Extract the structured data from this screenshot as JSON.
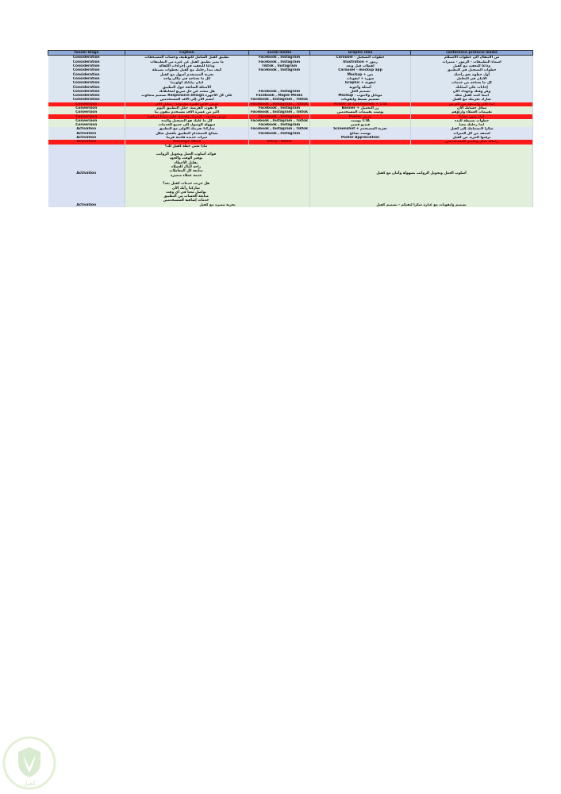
{
  "headers": [
    "funnel Stage",
    "Caption",
    "social media",
    "Graphic idea",
    "conference protocol media"
  ],
  "rows": [
    {
      "type": "consideration",
      "stage": "Consideration",
      "caption": "تطبيق كفيل الشامل للتوظيف وحساب المستحقات",
      "social": "Facebook , Instagram",
      "graphic": "Carousel - خطوات التسجيل",
      "protocol": "من الانتقال الى خطوات الاستلام"
    },
    {
      "type": "consideration",
      "stage": "Consideration",
      "caption": "ما يميز تطبيق كفيل عن غيره من التطبيقات",
      "social": "Facebook , Instagram",
      "graphic": "Illustration + رموز",
      "protocol": "أسماء التطبيقات - الرموز - مميزات"
    },
    {
      "type": "consideration",
      "stage": "Consideration",
      "caption": "وداعاً للتعقيد في إجراءات الكفالة",
      "social": "Tiktok , Instagram",
      "graphic": "لقطات قبل وبعد",
      "protocol": "وداعاً للتعقيد مع كفيل"
    },
    {
      "type": "consideration",
      "stage": "Consideration",
      "caption": "كيف تبدأ رحلتك مع كفيل بخطوات بسيطة",
      "social": "Facebook , Instagram",
      "graphic": "Carousel - mockup app",
      "protocol": "خطوات التسجيل في التطبيق"
    },
    {
      "type": "consideration",
      "stage": "Consideration",
      "caption": "تجربة المستخدم أسهل مع كفيل",
      "social": "",
      "graphic": "Mockup + نص",
      "protocol": "أول خطوة نحو راحتك"
    },
    {
      "type": "consideration",
      "stage": "Consideration",
      "caption": "كل ما تحتاجه في مكان واحد",
      "social": "",
      "graphic": "صورة + أيقونات",
      "protocol": "الأمان في التعامل"
    },
    {
      "type": "consideration",
      "stage": "Consideration",
      "caption": "أمان بياناتك أولويتنا",
      "social": "",
      "graphic": "Graphic + أيقونة",
      "protocol": "كل ما تحتاجه من خدمات"
    },
    {
      "type": "consideration",
      "stage": "Consideration",
      "caption": "الأسئلة الشائعة حول التطبيق",
      "social": "",
      "graphic": "أسئلة وأجوبة",
      "protocol": "إجابات على أسئلتك"
    },
    {
      "type": "consideration",
      "stage": "Consideration",
      "caption": "هل تبحث عن حل سريع لمعاملاتك",
      "social": "Facebook , Instagram",
      "graphic": "تصميم الحل",
      "protocol": "وفر وقتك وجهدك الآن"
    },
    {
      "type": "consideration",
      "stage": "Consideration",
      "caption": "تصميم متجاوب Responsive Design على كل الأجهزة",
      "social": "Facebook , Maple Media",
      "graphic": "Mockup - موبايل ولابتوب",
      "protocol": "أينما كنت كفيل معك"
    },
    {
      "type": "consideration",
      "stage": "Consideration",
      "caption": "انضم الآن إلى آلاف المستخدمين",
      "social": "Facebook , Instagram , Tiktok",
      "graphic": "تصميم بسيط وأيقونات",
      "protocol": "شارك تجربتك مع كفيل"
    },
    {
      "type": "red",
      "stage": "Conversion",
      "caption": "عرض خاص لفترة محدودة - سجل الآن",
      "social": "Facebook , Instagram , Tiktok",
      "graphic": "Poster or Countdown + CTA",
      "protocol": "ابدأ الآن واستفد من العرض"
    },
    {
      "type": "conversion",
      "stage": "Conversion",
      "caption": "لا تفوت الفرصة، حمّل التطبيق اليوم",
      "social": "Facebook , Instagram",
      "graphic": "Banner + زر التحميل",
      "protocol": "سجّل حسابك الآن"
    },
    {
      "type": "conversion",
      "stage": "Conversion",
      "caption": "أكثر من عشرة آلاف مستخدم يثقون بنا",
      "social": "Facebook , Instagram , Tiktok",
      "graphic": "بوست تقييمات المستخدمين",
      "protocol": "تقييمات العملاء وآراؤهم"
    },
    {
      "type": "red",
      "stage": "Conversion",
      "caption": "عرض محدود - اشترك واحصل على مزايا إضافية",
      "social": "Facebook , Instagram",
      "graphic": "Poster عرض",
      "protocol": "أول شهر مجاناً"
    },
    {
      "type": "conversion",
      "stage": "Conversion",
      "caption": "كل ما عليك هو التسجيل والبدء",
      "social": "Facebook , Instagram , Tiktok",
      "graphic": "بوست CTA",
      "protocol": "خطوات بسيطة للبدء"
    },
    {
      "type": "conversion",
      "stage": "Conversion",
      "caption": "سهولة الوصول إلى جميع الخدمات",
      "social": "Facebook , Instagram",
      "graphic": "فيديو قصير",
      "protocol": "ابدأ رحلتك معنا"
    },
    {
      "type": "activation",
      "stage": "Activation",
      "caption": "شاركنا تجربتك الأولى مع التطبيق",
      "social": "Facebook , Instagram , Tiktok",
      "graphic": "Screenshot + تجربة المستخدم",
      "protocol": "شكراً لانضمامك إلى كفيل"
    },
    {
      "type": "activation",
      "stage": "Activation",
      "caption": "نصائح لاستخدام التطبيق بأفضل شكل",
      "social": "Facebook , Instagram",
      "graphic": "بوست نصائح",
      "protocol": "استفد من كل الميزات"
    },
    {
      "type": "activation",
      "stage": "Activation",
      "caption": "ميزات جديدة قادمة قريباً",
      "social": "",
      "graphic": "Poster Appreciation",
      "protocol": "ترقبوا المزيد من كفيل"
    },
    {
      "type": "red",
      "stage": "Activation",
      "caption": "message ideas",
      "social": "Story / Reels",
      "graphic": "",
      "protocol": "رسالة شكر وتقدير للمستخدمين"
    }
  ],
  "big_row": {
    "stage": "Activation",
    "caption_lines": [
      "ماذا تعني خطة كفيل لك؟",
      "",
      "فوائد أسلوب العمل وتحويل الرواتب",
      "توفير الوقت والجهد",
      "تقليل الأخطاء",
      "راحة البال للعملاء",
      "متابعة كل المعاملات",
      "خدمة عملاء متميزة",
      "",
      "هل جربت خدمات كفيل بعد؟",
      "شاركنا رأيك الآن",
      "تواصل معنا في أي وقت",
      "متابعة الحساب من التطبيق",
      "خدمات إضافية للمستخدمين"
    ],
    "graphic": "أسلوب العمل وتحويل الرواتب بسهولة وأمان مع كفيل"
  },
  "final_row": {
    "stage": "Activation",
    "caption": "تجربة مميزة مع كفيل",
    "graphic": "تصميم وأيقونات مع عبارة شكراً لثقتكم - تصميم كفيل"
  },
  "logo_text": "كفيل",
  "colors": {
    "header": "#8eaadb",
    "consideration": "#dce6f1",
    "conversion": "#e2efda",
    "highlight": "#ff1a1a",
    "logo": "#c8e6b0"
  }
}
